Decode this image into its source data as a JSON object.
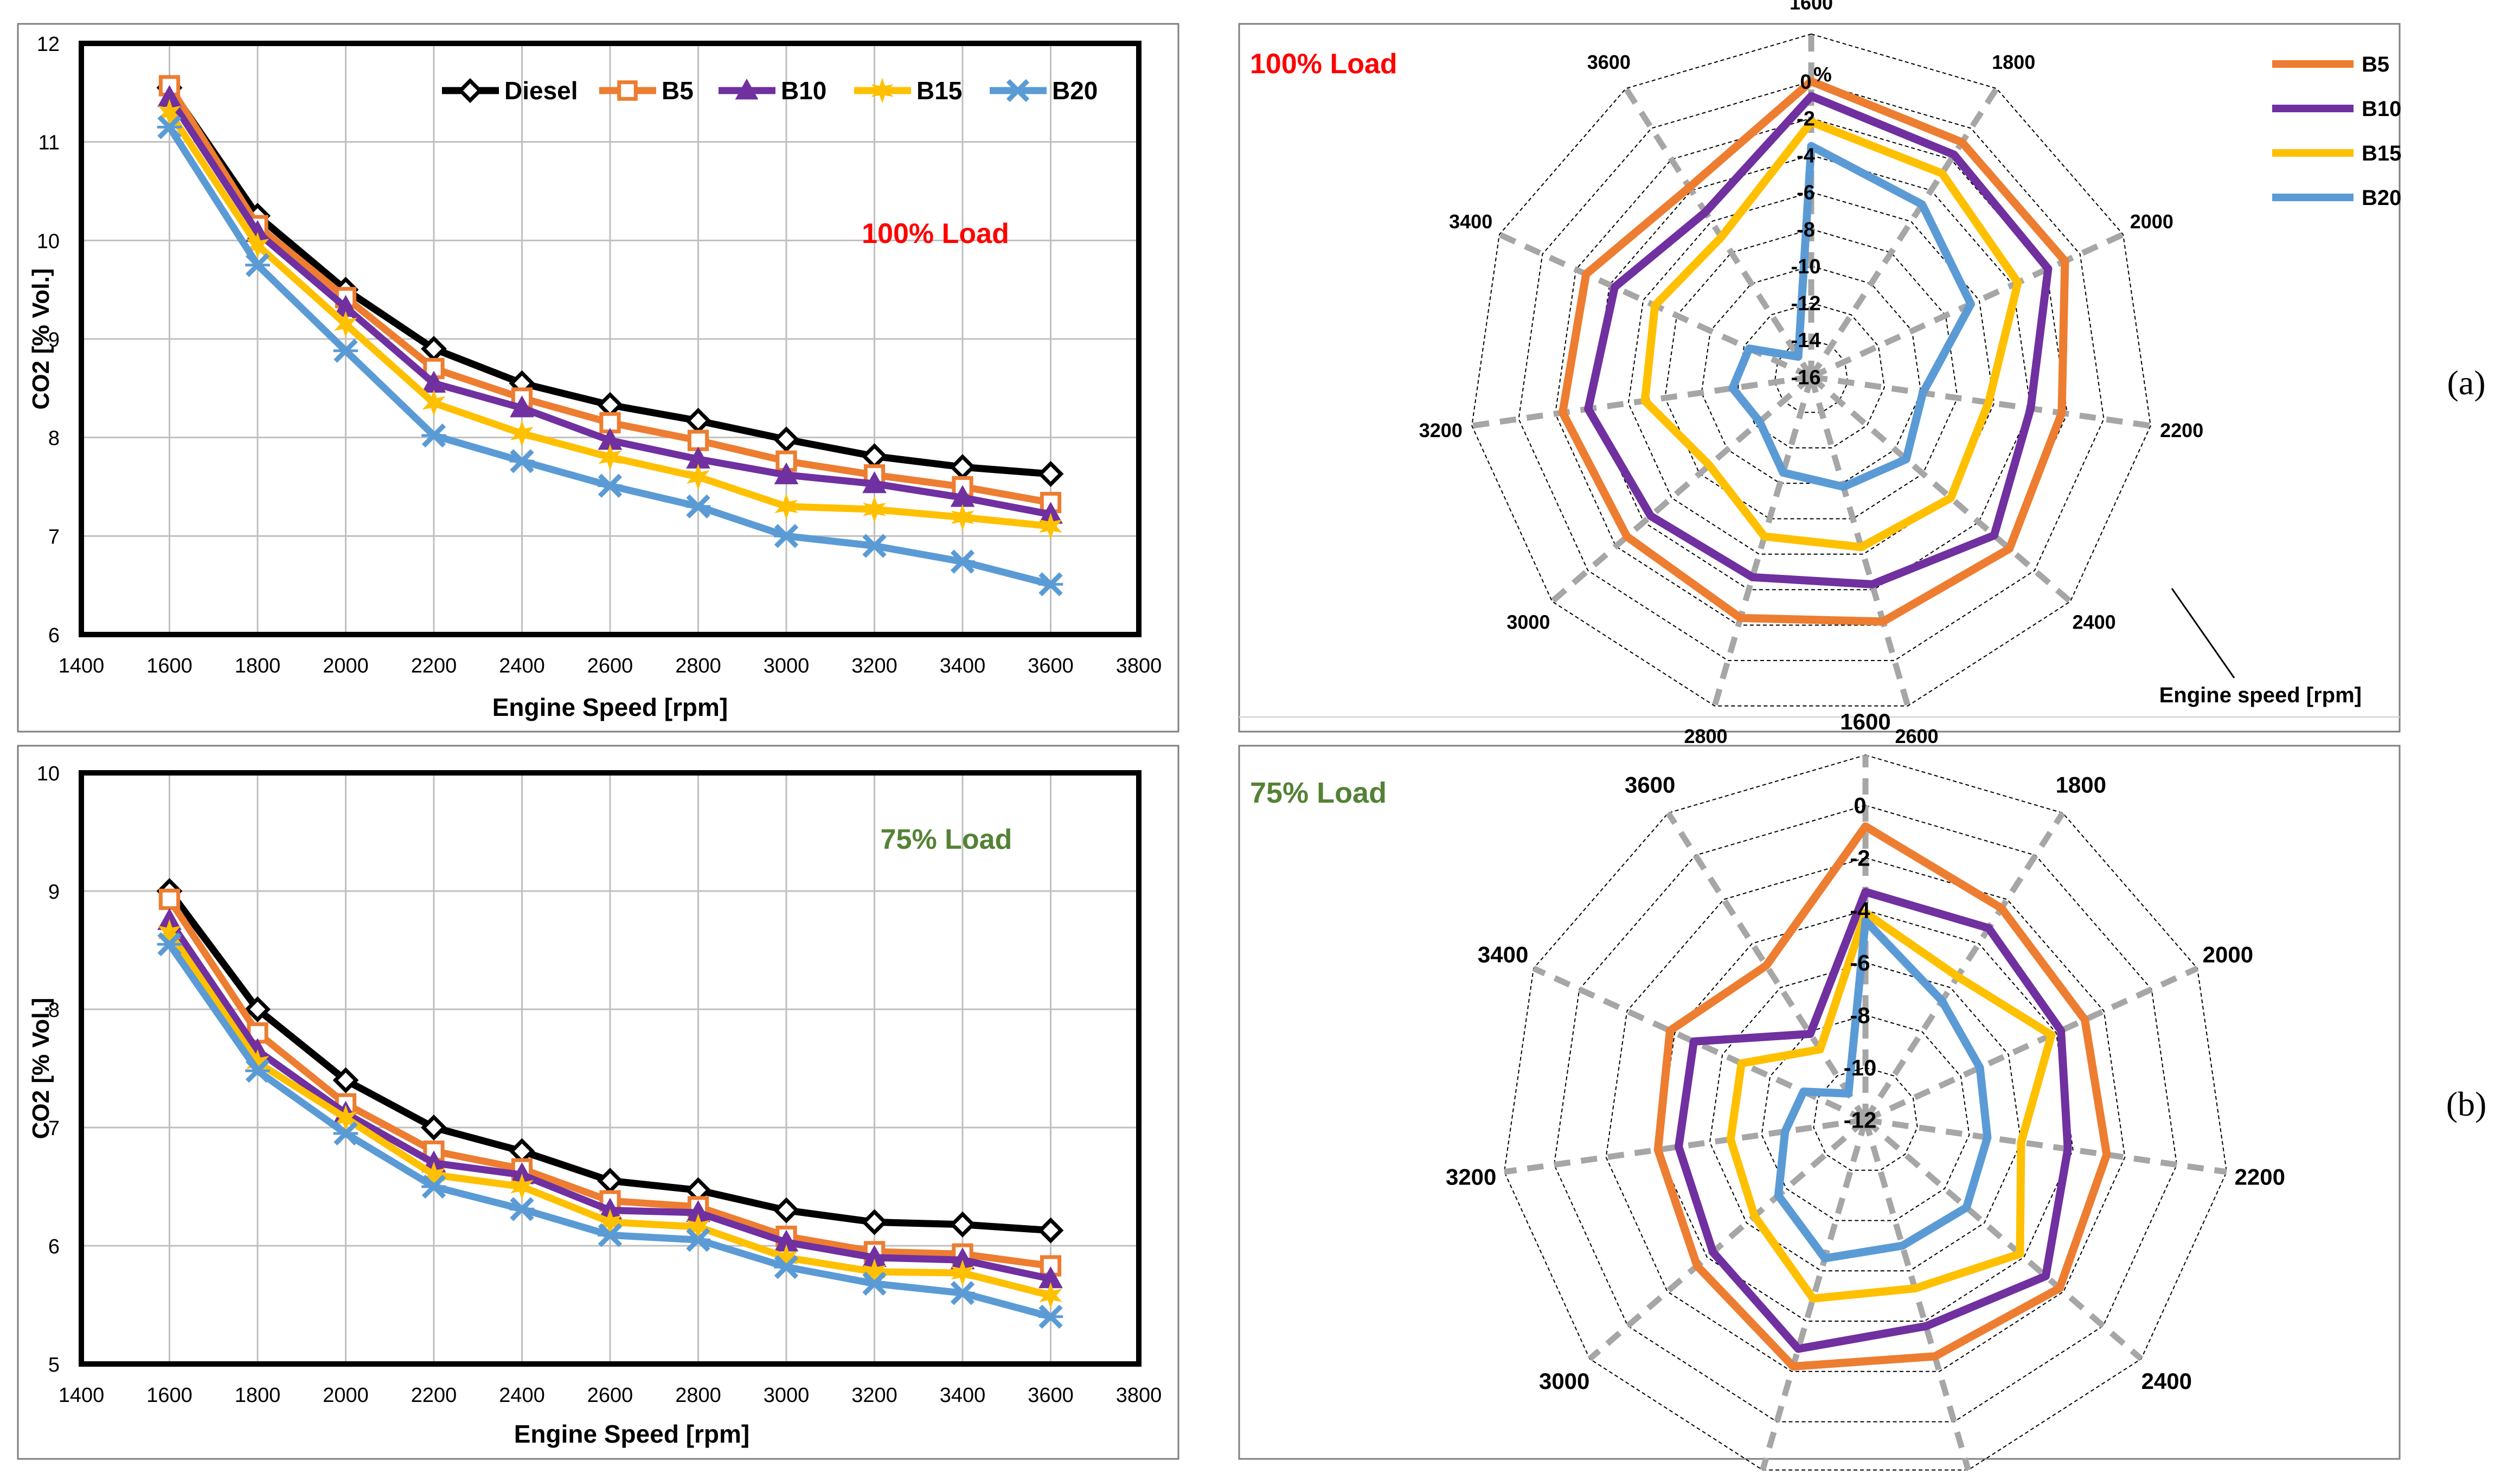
{
  "panel_labels": [
    "(a)",
    "(b)"
  ],
  "colors": {
    "Diesel": "#000000",
    "B5": "#ED7D31",
    "B10": "#7030A0",
    "B15": "#FFC000",
    "B20": "#5B9BD5",
    "grid": "#bfbfbf",
    "spoke": "#a6a6a6",
    "title_100": "#FF0000",
    "title_75": "#548235"
  },
  "chart_data": [
    {
      "id": "line_100",
      "type": "line",
      "title": "100% Load",
      "xlabel": "Engine Speed [rpm]",
      "ylabel": "CO2 [% Vol.]",
      "xlim": [
        1400,
        3800
      ],
      "ylim": [
        6,
        12
      ],
      "xticks": [
        1400,
        1600,
        1800,
        2000,
        2200,
        2400,
        2600,
        2800,
        3000,
        3200,
        3400,
        3600,
        3800
      ],
      "yticks": [
        6,
        7,
        8,
        9,
        10,
        11,
        12
      ],
      "legend": "top",
      "x": [
        1600,
        1800,
        2000,
        2200,
        2400,
        2600,
        2800,
        3000,
        3200,
        3400,
        3600
      ],
      "series": [
        {
          "name": "Diesel",
          "marker": "diamond",
          "values": [
            11.55,
            10.25,
            9.5,
            8.9,
            8.55,
            8.33,
            8.17,
            7.98,
            7.81,
            7.7,
            7.63
          ]
        },
        {
          "name": "B5",
          "marker": "square",
          "values": [
            11.57,
            10.15,
            9.42,
            8.7,
            8.4,
            8.15,
            7.97,
            7.76,
            7.62,
            7.5,
            7.34
          ]
        },
        {
          "name": "B10",
          "marker": "triangle",
          "values": [
            11.45,
            10.08,
            9.32,
            8.55,
            8.3,
            7.97,
            7.78,
            7.62,
            7.53,
            7.39,
            7.22
          ]
        },
        {
          "name": "B15",
          "marker": "star",
          "values": [
            11.3,
            9.95,
            9.15,
            8.35,
            8.04,
            7.8,
            7.6,
            7.3,
            7.27,
            7.19,
            7.1
          ]
        },
        {
          "name": "B20",
          "marker": "x",
          "values": [
            11.15,
            9.75,
            8.88,
            8.02,
            7.76,
            7.51,
            7.3,
            7.0,
            6.9,
            6.74,
            6.51
          ]
        }
      ]
    },
    {
      "id": "radar_100",
      "type": "radar",
      "title": "100% Load",
      "unit_label": "%",
      "axis_label": "Engine speed [rpm]",
      "categories": [
        "1600",
        "1800",
        "2000",
        "2200",
        "2400",
        "2600",
        "2800",
        "3000",
        "3200",
        "3400",
        "3600"
      ],
      "rlim": [
        -16,
        0
      ],
      "rticks": [
        0,
        -2,
        -4,
        -6,
        -8,
        -10,
        -12,
        -14,
        -16
      ],
      "legend": "top-right",
      "series": [
        {
          "name": "B5",
          "values": [
            0,
            -0.9,
            -0.9,
            -2.3,
            -1.8,
            -2.2,
            -2.4,
            -2.8,
            -2.4,
            -2.6,
            -3.8
          ]
        },
        {
          "name": "B10",
          "values": [
            -0.8,
            -1.7,
            -1.9,
            -4.0,
            -2.9,
            -4.3,
            -4.7,
            -4.5,
            -3.8,
            -4.3,
            -5.4
          ]
        },
        {
          "name": "B15",
          "values": [
            -2.2,
            -2.9,
            -3.7,
            -6.3,
            -6.0,
            -6.4,
            -7.0,
            -8.7,
            -6.9,
            -6.7,
            -7.0
          ]
        },
        {
          "name": "B20",
          "values": [
            -3.5,
            -4.9,
            -6.5,
            -9.9,
            -9.2,
            -9.8,
            -10.6,
            -12.3,
            -11.7,
            -12.3,
            -14.7
          ]
        }
      ]
    },
    {
      "id": "line_75",
      "type": "line",
      "title": "75% Load",
      "xlabel": "Engine Speed [rpm]",
      "ylabel": "CO2 [% Vol.]",
      "xlim": [
        1400,
        3800
      ],
      "ylim": [
        5,
        10
      ],
      "xticks": [
        1400,
        1600,
        1800,
        2000,
        2200,
        2400,
        2600,
        2800,
        3000,
        3200,
        3400,
        3600,
        3800
      ],
      "yticks": [
        5,
        6,
        7,
        8,
        9,
        10
      ],
      "legend": "none",
      "x": [
        1600,
        1800,
        2000,
        2200,
        2400,
        2600,
        2800,
        3000,
        3200,
        3400,
        3600
      ],
      "series": [
        {
          "name": "Diesel",
          "marker": "diamond",
          "values": [
            9.0,
            8.0,
            7.4,
            7.0,
            6.8,
            6.55,
            6.47,
            6.3,
            6.2,
            6.18,
            6.13
          ]
        },
        {
          "name": "B5",
          "marker": "square",
          "values": [
            8.93,
            7.8,
            7.2,
            6.8,
            6.65,
            6.38,
            6.33,
            6.08,
            5.95,
            5.93,
            5.83
          ]
        },
        {
          "name": "B10",
          "marker": "triangle",
          "values": [
            8.75,
            7.65,
            7.12,
            6.7,
            6.6,
            6.3,
            6.28,
            6.03,
            5.9,
            5.88,
            5.72
          ]
        },
        {
          "name": "B15",
          "marker": "star",
          "values": [
            8.65,
            7.55,
            7.08,
            6.6,
            6.5,
            6.2,
            6.16,
            5.9,
            5.78,
            5.77,
            5.58
          ]
        },
        {
          "name": "B20",
          "marker": "x",
          "values": [
            8.55,
            7.48,
            6.95,
            6.5,
            6.31,
            6.09,
            6.05,
            5.82,
            5.68,
            5.6,
            5.4
          ]
        }
      ]
    },
    {
      "id": "radar_75",
      "type": "radar",
      "title": "75% Load",
      "categories": [
        "1600",
        "1800",
        "2000",
        "2200",
        "2400",
        "2600",
        "2800",
        "3000",
        "3200",
        "3400",
        "3600"
      ],
      "rlim": [
        -12,
        0
      ],
      "rticks": [
        0,
        -2,
        -4,
        -6,
        -8,
        -10,
        -12
      ],
      "legend": "none",
      "series": [
        {
          "name": "B5",
          "values": [
            -0.8,
            -2.4,
            -2.8,
            -2.7,
            -2.2,
            -2.6,
            -2.2,
            -3.5,
            -4.0,
            -3.8,
            -5.0
          ]
        },
        {
          "name": "B10",
          "values": [
            -3.3,
            -3.3,
            -3.8,
            -4.2,
            -2.9,
            -3.8,
            -2.9,
            -4.3,
            -4.8,
            -4.8,
            -8.1
          ]
        },
        {
          "name": "B15",
          "values": [
            -4.1,
            -5.5,
            -4.2,
            -6.0,
            -4.2,
            -5.3,
            -4.9,
            -6.4,
            -6.8,
            -6.8,
            -8.8
          ]
        },
        {
          "name": "B20",
          "values": [
            -4.4,
            -6.6,
            -7.2,
            -7.3,
            -6.9,
            -7.0,
            -6.5,
            -7.6,
            -8.9,
            -9.4,
            -10.8
          ]
        }
      ]
    }
  ]
}
